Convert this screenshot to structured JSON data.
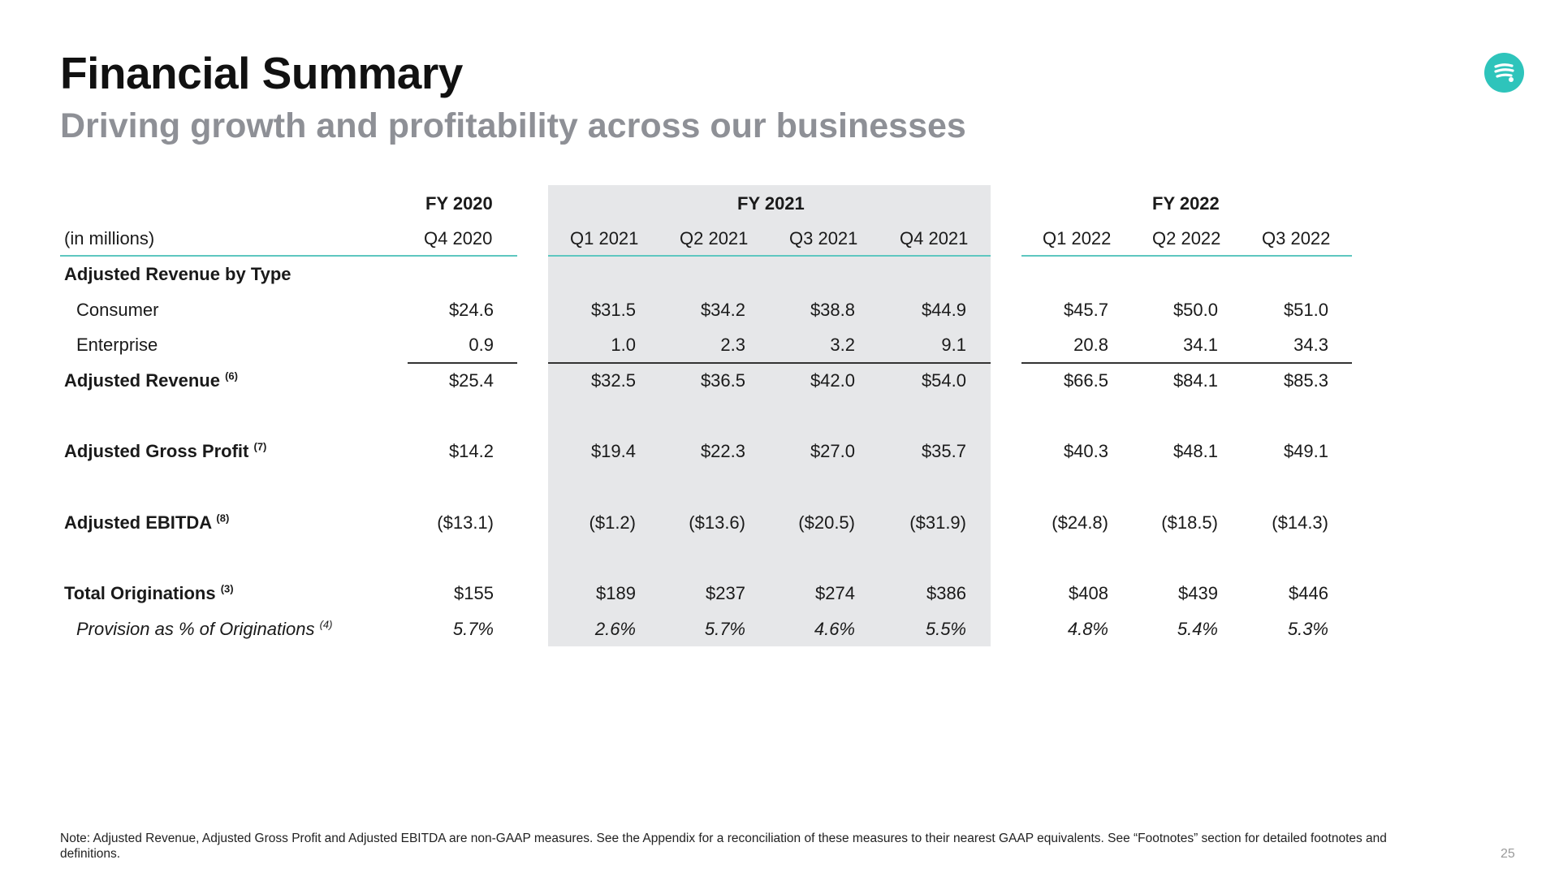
{
  "slide": {
    "title": "Financial Summary",
    "subtitle": "Driving growth and profitability across our businesses",
    "note": "Note: Adjusted Revenue, Adjusted Gross Profit and Adjusted EBITDA are non-GAAP measures. See the Appendix for a reconciliation of these measures to their nearest GAAP equivalents. See “Footnotes” section for detailed footnotes and definitions.",
    "page_number": "25",
    "logo_icon": "brand-logo-icon",
    "accent_color": "#2ec4bb"
  },
  "table": {
    "unit_label": "(in millions)",
    "years": [
      "FY 2020",
      "FY 2021",
      "FY 2022"
    ],
    "columns": [
      "Q4 2020",
      "Q1 2021",
      "Q2 2021",
      "Q3 2021",
      "Q4 2021",
      "Q1 2022",
      "Q2 2022",
      "Q3 2022"
    ],
    "rows": {
      "rev_by_type": {
        "label": "Adjusted Revenue by Type"
      },
      "consumer": {
        "label": "Consumer",
        "values": [
          "$24.6",
          "$31.5",
          "$34.2",
          "$38.8",
          "$44.9",
          "$45.7",
          "$50.0",
          "$51.0"
        ]
      },
      "enterprise": {
        "label": "Enterprise",
        "values": [
          "0.9",
          "1.0",
          "2.3",
          "3.2",
          "9.1",
          "20.8",
          "34.1",
          "34.3"
        ]
      },
      "adj_revenue": {
        "label": "Adjusted Revenue",
        "footnote": "(6)",
        "values": [
          "$25.4",
          "$32.5",
          "$36.5",
          "$42.0",
          "$54.0",
          "$66.5",
          "$84.1",
          "$85.3"
        ]
      },
      "gross_profit": {
        "label": "Adjusted Gross Profit",
        "footnote": "(7)",
        "values": [
          "$14.2",
          "$19.4",
          "$22.3",
          "$27.0",
          "$35.7",
          "$40.3",
          "$48.1",
          "$49.1"
        ]
      },
      "ebitda": {
        "label": "Adjusted EBITDA",
        "footnote": "(8)",
        "values": [
          "($13.1)",
          "($1.2)",
          "($13.6)",
          "($20.5)",
          "($31.9)",
          "($24.8)",
          "($18.5)",
          "($14.3)"
        ]
      },
      "originations": {
        "label": "Total Originations",
        "footnote": "(3)",
        "values": [
          "$155",
          "$189",
          "$237",
          "$274",
          "$386",
          "$408",
          "$439",
          "$446"
        ]
      },
      "provision": {
        "label": "Provision as % of Originations",
        "footnote": "(4)",
        "values": [
          "5.7%",
          "2.6%",
          "5.7%",
          "4.6%",
          "5.5%",
          "4.8%",
          "5.4%",
          "5.3%"
        ]
      }
    }
  }
}
